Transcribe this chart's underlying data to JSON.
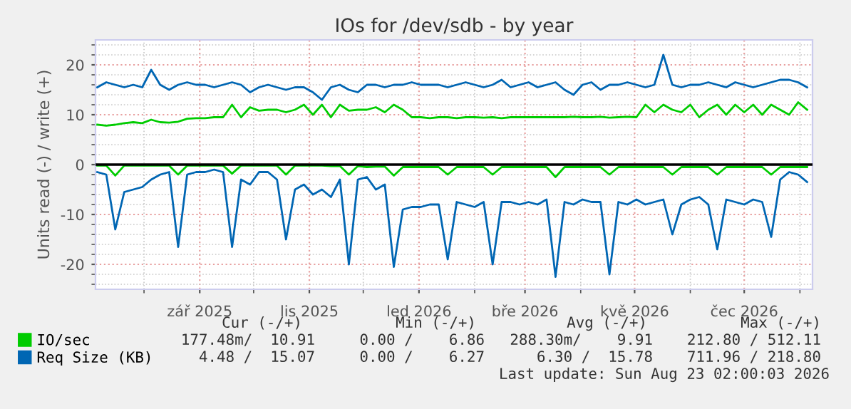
{
  "chart_data": {
    "type": "line",
    "title": "IOs for /dev/sdb - by year",
    "ylabel": "Units read (-) / write (+)",
    "x": [
      "2025-07-06",
      "2025-07-11",
      "2025-07-16",
      "2025-07-21",
      "2025-07-26",
      "2025-07-31",
      "2025-08-05",
      "2025-08-10",
      "2025-08-15",
      "2025-08-20",
      "2025-08-25",
      "2025-08-30",
      "2025-09-04",
      "2025-09-09",
      "2025-09-14",
      "2025-09-19",
      "2025-09-24",
      "2025-09-29",
      "2025-10-04",
      "2025-10-09",
      "2025-10-14",
      "2025-10-19",
      "2025-10-24",
      "2025-10-29",
      "2025-11-03",
      "2025-11-08",
      "2025-11-13",
      "2025-11-18",
      "2025-11-23",
      "2025-11-28",
      "2025-12-03",
      "2025-12-08",
      "2025-12-13",
      "2025-12-18",
      "2025-12-23",
      "2025-12-28",
      "2026-01-02",
      "2026-01-07",
      "2026-01-12",
      "2026-01-17",
      "2026-01-22",
      "2026-01-27",
      "2026-02-01",
      "2026-02-06",
      "2026-02-11",
      "2026-02-16",
      "2026-02-21",
      "2026-02-26",
      "2026-03-03",
      "2026-03-08",
      "2026-03-13",
      "2026-03-18",
      "2026-03-23",
      "2026-03-28",
      "2026-04-02",
      "2026-04-07",
      "2026-04-12",
      "2026-04-17",
      "2026-04-22",
      "2026-04-27",
      "2026-05-02",
      "2026-05-07",
      "2026-05-12",
      "2026-05-17",
      "2026-05-22",
      "2026-05-27",
      "2026-06-01",
      "2026-06-06",
      "2026-06-11",
      "2026-06-16",
      "2026-06-21",
      "2026-06-26",
      "2026-07-01",
      "2026-07-06",
      "2026-07-11",
      "2026-07-16",
      "2026-07-21",
      "2026-07-26",
      "2026-07-31",
      "2026-08-05"
    ],
    "series": [
      {
        "name": "IO/sec",
        "color": "#00cc00",
        "values": [
          8,
          7.8,
          8,
          8.3,
          8.5,
          8.3,
          9,
          8.5,
          8.4,
          8.6,
          9.2,
          9.3,
          9.3,
          9.5,
          9.5,
          12,
          9.5,
          11.5,
          10.8,
          11,
          11,
          10.5,
          11,
          12,
          10,
          12,
          9.5,
          12,
          10.8,
          11,
          11,
          11.5,
          10.5,
          12,
          11,
          9.5,
          9.5,
          9.3,
          9.5,
          9.5,
          9.3,
          9.5,
          9.5,
          9.4,
          9.5,
          9.3,
          9.5,
          9.5,
          9.5,
          9.5,
          9.5,
          9.5,
          9.5,
          9.6,
          9.5,
          9.5,
          9.6,
          9.4,
          9.5,
          9.6,
          9.5,
          12,
          10.5,
          12,
          11,
          10.5,
          12,
          9.5,
          11,
          12,
          10,
          12,
          10.5,
          12,
          10,
          12,
          11,
          10,
          12.5,
          11
        ]
      },
      {
        "color": "#00cc00",
        "values": [
          -0.2,
          -0.2,
          -2.2,
          -0.2,
          -0.2,
          -0.2,
          -0.2,
          -0.2,
          -0.2,
          -2,
          -0.2,
          -0.2,
          -0.2,
          -0.2,
          -0.2,
          -1.8,
          -0.2,
          -0.2,
          -0.2,
          -0.2,
          -0.2,
          -2,
          -0.2,
          -0.2,
          -0.2,
          -0.2,
          -0.3,
          -0.3,
          -2,
          -0.3,
          -0.5,
          -0.4,
          -0.4,
          -2.2,
          -0.5,
          -0.5,
          -0.5,
          -0.5,
          -0.5,
          -2,
          -0.5,
          -0.5,
          -0.5,
          -0.5,
          -2,
          -0.5,
          -0.5,
          -0.5,
          -0.5,
          -0.5,
          -0.5,
          -2.5,
          -0.5,
          -0.5,
          -0.5,
          -0.5,
          -0.5,
          -2,
          -0.5,
          -0.5,
          -0.5,
          -0.5,
          -0.5,
          -0.5,
          -2,
          -0.5,
          -0.5,
          -0.5,
          -0.5,
          -2,
          -0.5,
          -0.5,
          -0.5,
          -0.5,
          -0.5,
          -2,
          -0.5,
          -0.5,
          -0.5,
          -0.5
        ]
      },
      {
        "name": "Req Size (KB)",
        "color": "#0066b3",
        "values": [
          15.5,
          16.5,
          16,
          15.5,
          16,
          15.5,
          19,
          16,
          15,
          16,
          16.5,
          16,
          16,
          15.5,
          16,
          16.5,
          16,
          14.5,
          15.5,
          16,
          15.5,
          15,
          15.5,
          15.5,
          14.5,
          13,
          15.5,
          16,
          15,
          14.5,
          16,
          16,
          15.5,
          16,
          16,
          16.5,
          16,
          16,
          16,
          15.5,
          16,
          16.5,
          16,
          15.5,
          16,
          17,
          15.5,
          16,
          16.5,
          15.5,
          16,
          16.5,
          15,
          14,
          16,
          16.5,
          15,
          16,
          16,
          16.5,
          16,
          15.5,
          16,
          22,
          16,
          15.5,
          16,
          16,
          16.5,
          16,
          15.5,
          16.5,
          16,
          15.5,
          16,
          16.5,
          17,
          17,
          16.5,
          15.5
        ]
      },
      {
        "color": "#0066b3",
        "values": [
          -1.5,
          -2,
          -13,
          -5.5,
          -5,
          -4.5,
          -3,
          -2,
          -1.5,
          -16.5,
          -2,
          -1.5,
          -1.5,
          -1,
          -1.5,
          -16.5,
          -3,
          -4,
          -1.5,
          -1.5,
          -3,
          -15,
          -5,
          -4,
          -6,
          -5,
          -6.5,
          -3,
          -20,
          -3,
          -2.5,
          -5,
          -4,
          -20.5,
          -9,
          -8.5,
          -8.5,
          -8,
          -8,
          -19,
          -7.5,
          -8,
          -8.5,
          -7.5,
          -20,
          -7.5,
          -7.5,
          -8,
          -7.5,
          -8,
          -7,
          -22.5,
          -7.5,
          -8,
          -7,
          -7.5,
          -7.5,
          -22,
          -7.5,
          -8,
          -7,
          -8,
          -7.5,
          -7,
          -14,
          -8,
          -7,
          -6.5,
          -8,
          -17,
          -7,
          -7.5,
          -8,
          -7,
          -7.5,
          -14.5,
          -3,
          -1.5,
          -2,
          -3.5
        ]
      }
    ],
    "xlim": [
      "2025-07-05",
      "2026-08-08"
    ],
    "xticks": [
      {
        "value": "2025-09-01",
        "label": "zář 2025"
      },
      {
        "value": "2025-11-01",
        "label": "lis 2025"
      },
      {
        "value": "2026-01-01",
        "label": "led 2026"
      },
      {
        "value": "2026-03-01",
        "label": "bře 2026"
      },
      {
        "value": "2026-05-01",
        "label": "kvě 2026"
      },
      {
        "value": "2026-07-01",
        "label": "čec 2026"
      }
    ],
    "ylim": [
      -25,
      25
    ],
    "yticks": [
      -20,
      -10,
      0,
      10,
      20
    ],
    "ref_lines": [
      {
        "axis": "y",
        "value": 0,
        "color": "#000000"
      }
    ],
    "grid": true,
    "legend": "bottom left",
    "marker": "none",
    "line_style": "solid",
    "annotations": [
      "Cur (-/+)",
      "Min (-/+)",
      "Avg (-/+)",
      "Max (-/+)",
      "177.48m/  10.91",
      "0.00 /    6.86",
      "288.30m/    9.91",
      "212.80 / 512.11",
      "4.48 /  15.07",
      "0.00 /    6.27",
      "6.30 /  15.78",
      "711.96 / 218.80",
      "Last update: Sun Aug 23 02:00:03 2026"
    ]
  }
}
